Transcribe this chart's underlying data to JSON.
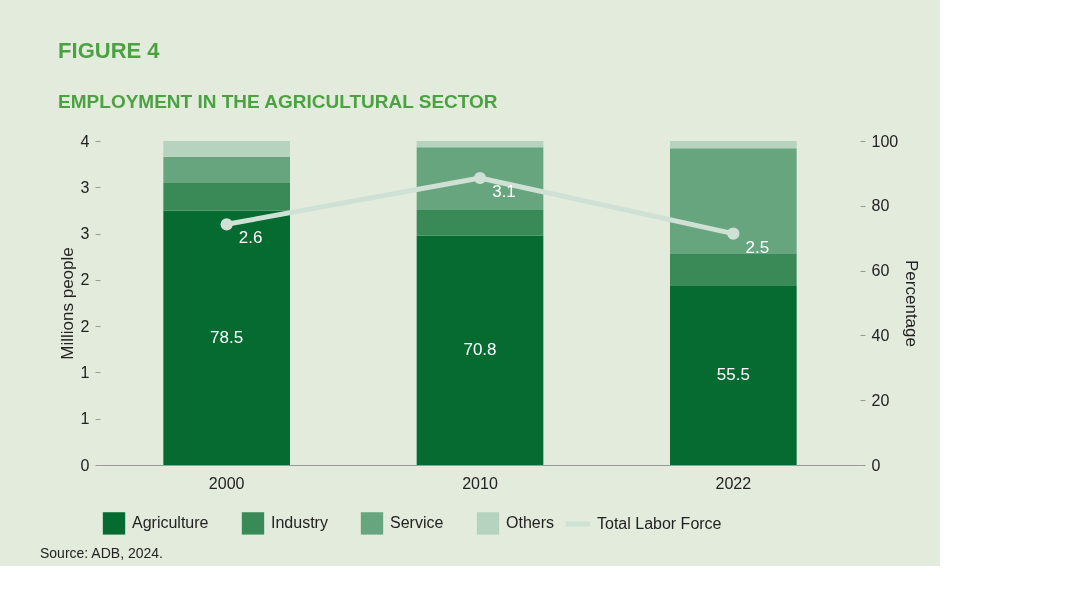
{
  "chart_data": {
    "type": "bar",
    "stacked": true,
    "title": "FIGURE 4",
    "subtitle": "EMPLOYMENT IN THE AGRICULTURAL SECTOR",
    "categories": [
      "2000",
      "2010",
      "2022"
    ],
    "series": [
      {
        "name": "Agriculture",
        "color": "#066b31",
        "axis": "y2",
        "values": [
          78.5,
          70.8,
          55.5
        ],
        "value_labels": [
          "78.5",
          "70.8",
          "55.5"
        ]
      },
      {
        "name": "Industry",
        "color": "#3a8a57",
        "axis": "y2",
        "values": [
          8.5,
          7.9,
          9.6
        ]
      },
      {
        "name": "Service",
        "color": "#67a57f",
        "axis": "y2",
        "values": [
          8.1,
          19.4,
          32.7
        ]
      },
      {
        "name": "Others",
        "color": "#b5d3bf",
        "axis": "y2",
        "values": [
          4.9,
          1.9,
          2.2
        ]
      },
      {
        "name": "Total Labor Force",
        "type": "line",
        "color": "#cfe0d5",
        "axis": "y",
        "marker": "circle",
        "values": [
          2.6,
          3.1,
          2.5
        ],
        "value_labels": [
          "2.6",
          "3.1",
          "2.5"
        ]
      }
    ],
    "ylabel": "Millions people",
    "y2label": "Percentage",
    "ylim": [
      0,
      3.5
    ],
    "yticks": [
      {
        "value": 0,
        "label": "0"
      },
      {
        "value": 0.5,
        "label": "1"
      },
      {
        "value": 1,
        "label": "1"
      },
      {
        "value": 1.5,
        "label": "2"
      },
      {
        "value": 2,
        "label": "2"
      },
      {
        "value": 2.5,
        "label": "3"
      },
      {
        "value": 3,
        "label": "3"
      },
      {
        "value": 3.5,
        "label": "4"
      }
    ],
    "y2lim": [
      0,
      100
    ],
    "y2ticks": [
      0,
      20,
      40,
      60,
      80,
      100
    ],
    "grid": false,
    "legend": "bottom",
    "annotations": [
      "Source: ADB, 2024."
    ]
  }
}
